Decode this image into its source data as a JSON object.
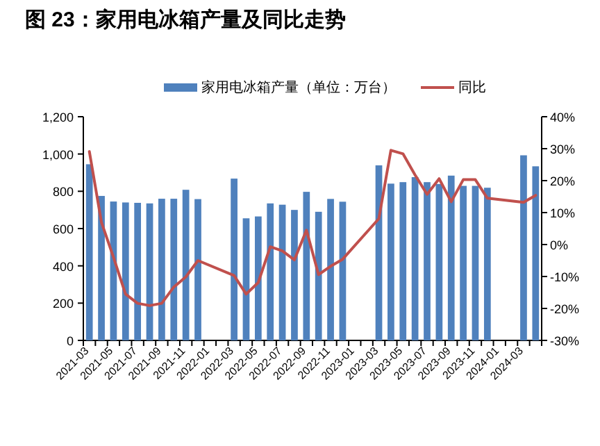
{
  "chart_data": {
    "type": "bar",
    "title": "图 23：家用电冰箱产量及同比走势",
    "categories": [
      "2021-03",
      null,
      "2021-05",
      null,
      "2021-07",
      null,
      "2021-09",
      null,
      "2021-11",
      null,
      "2022-01",
      null,
      "2022-03",
      null,
      "2022-05",
      null,
      "2022-07",
      null,
      "2022-09",
      null,
      "2022-11",
      null,
      "2023-01",
      null,
      "2023-03",
      null,
      "2023-05",
      null,
      "2023-07",
      null,
      "2023-09",
      null,
      "2023-11",
      null,
      "2024-01",
      null,
      "2024-03",
      null
    ],
    "series": [
      {
        "name": "家用电冰箱产量（单位：万台）",
        "color": "#4f81bd",
        "values": [
          945,
          775,
          745,
          740,
          738,
          735,
          760,
          760,
          808,
          758,
          null,
          null,
          868,
          655,
          665,
          735,
          728,
          700,
          797,
          690,
          759,
          744,
          null,
          null,
          939,
          841,
          849,
          876,
          849,
          839,
          884,
          829,
          829,
          819,
          null,
          null,
          993,
          934
        ]
      },
      {
        "name": "同比",
        "type": "line",
        "axis": "y2",
        "color": "#c0504d",
        "values": [
          29.1,
          7.0,
          -4.0,
          -15.5,
          -18.4,
          -19.1,
          -18.4,
          -13.3,
          -10.1,
          -5.0,
          null,
          null,
          -9.7,
          -15.5,
          -11.9,
          -0.7,
          -2.0,
          -4.8,
          4.5,
          -9.4,
          -6.8,
          -4.6,
          null,
          null,
          8.1,
          29.5,
          28.4,
          21.8,
          15.7,
          20.6,
          13.4,
          20.3,
          20.3,
          14.5,
          null,
          null,
          13.2,
          15.4
        ]
      }
    ],
    "ylim": [
      0,
      1200
    ],
    "yticks": [
      0,
      200,
      400,
      600,
      800,
      {
        "value": 1000,
        "label": "1,000"
      },
      {
        "value": 1200,
        "label": "1,200"
      }
    ],
    "y2lim": [
      -30,
      40
    ],
    "y2ticks": [
      {
        "value": -30,
        "label": "-30%"
      },
      {
        "value": -20,
        "label": "-20%"
      },
      {
        "value": -10,
        "label": "-10%"
      },
      {
        "value": 0,
        "label": "0%"
      },
      {
        "value": 10,
        "label": "10%"
      },
      {
        "value": 20,
        "label": "20%"
      },
      {
        "value": 30,
        "label": "30%"
      },
      {
        "value": 40,
        "label": "40%"
      }
    ],
    "legend": "top",
    "grid": false
  }
}
